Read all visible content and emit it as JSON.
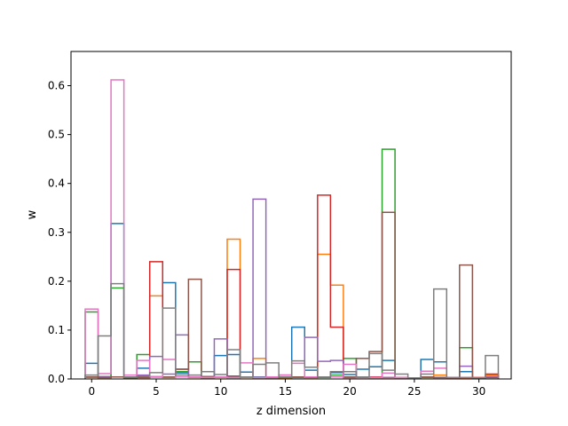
{
  "chart_data": {
    "type": "step-histogram",
    "title": "",
    "xlabel": "z dimension",
    "ylabel": "w",
    "xlim": [
      -1.6,
      32.5
    ],
    "ylim": [
      0,
      0.67
    ],
    "xticks": [
      0,
      5,
      10,
      15,
      20,
      25,
      30
    ],
    "yticks": [
      0.0,
      0.1,
      0.2,
      0.3,
      0.4,
      0.5,
      0.6
    ],
    "x": [
      0,
      1,
      2,
      3,
      4,
      5,
      6,
      7,
      8,
      9,
      10,
      11,
      12,
      13,
      14,
      15,
      16,
      17,
      18,
      19,
      20,
      21,
      22,
      23,
      24,
      25,
      26,
      27,
      28,
      29,
      30,
      31
    ],
    "series": [
      {
        "color": "#1f77b4",
        "values": [
          0.032,
          0.005,
          0.318,
          0.004,
          0.022,
          0.004,
          0.197,
          0.012,
          0.004,
          0.003,
          0.048,
          0.05,
          0.014,
          0.004,
          0.003,
          0.004,
          0.106,
          0.018,
          0.004,
          0.013,
          0.009,
          0.02,
          0.025,
          0.038,
          0.003,
          0.002,
          0.04,
          0.035,
          0.002,
          0.015,
          0.002,
          0.004
        ]
      },
      {
        "color": "#ff7f0e",
        "values": [
          0.003,
          0.003,
          0.004,
          0.003,
          0.003,
          0.17,
          0.003,
          0.004,
          0.003,
          0.003,
          0.003,
          0.286,
          0.003,
          0.042,
          0.003,
          0.002,
          0.004,
          0.003,
          0.255,
          0.192,
          0.003,
          0.003,
          0.003,
          0.003,
          0.003,
          0.002,
          0.003,
          0.008,
          0.002,
          0.002,
          0.002,
          0.008
        ]
      },
      {
        "color": "#2ca02c",
        "values": [
          0.137,
          0.003,
          0.186,
          0.002,
          0.05,
          0.005,
          0.004,
          0.015,
          0.035,
          0.003,
          0.004,
          0.003,
          0.004,
          0.003,
          0.003,
          0.003,
          0.003,
          0.003,
          0.003,
          0.008,
          0.042,
          0.004,
          0.003,
          0.47,
          0.003,
          0.002,
          0.003,
          0.003,
          0.003,
          0.064,
          0.002,
          0.003
        ]
      },
      {
        "color": "#d62728",
        "values": [
          0.004,
          0.003,
          0.004,
          0.003,
          0.003,
          0.24,
          0.004,
          0.02,
          0.004,
          0.003,
          0.004,
          0.224,
          0.004,
          0.003,
          0.003,
          0.008,
          0.004,
          0.003,
          0.376,
          0.106,
          0.003,
          0.004,
          0.004,
          0.003,
          0.003,
          0.002,
          0.004,
          0.003,
          0.003,
          0.003,
          0.003,
          0.01
        ]
      },
      {
        "color": "#9467bd",
        "values": [
          0.004,
          0.005,
          0.004,
          0.003,
          0.008,
          0.046,
          0.01,
          0.09,
          0.004,
          0.003,
          0.082,
          0.003,
          0.004,
          0.368,
          0.003,
          0.004,
          0.003,
          0.085,
          0.036,
          0.038,
          0.003,
          0.003,
          0.003,
          0.003,
          0.003,
          0.002,
          0.004,
          0.003,
          0.003,
          0.026,
          0.002,
          0.003
        ]
      },
      {
        "color": "#8c564b",
        "values": [
          0.004,
          0.003,
          0.004,
          0.003,
          0.003,
          0.004,
          0.004,
          0.02,
          0.204,
          0.005,
          0.004,
          0.006,
          0.004,
          0.003,
          0.004,
          0.003,
          0.004,
          0.004,
          0.004,
          0.004,
          0.004,
          0.042,
          0.056,
          0.341,
          0.003,
          0.002,
          0.004,
          0.003,
          0.003,
          0.233,
          0.002,
          0.003
        ]
      },
      {
        "color": "#e377c2",
        "values": [
          0.143,
          0.011,
          0.612,
          0.008,
          0.038,
          0.005,
          0.04,
          0.004,
          0.004,
          0.003,
          0.004,
          0.003,
          0.033,
          0.003,
          0.004,
          0.008,
          0.032,
          0.004,
          0.004,
          0.004,
          0.03,
          0.004,
          0.003,
          0.012,
          0.003,
          0.002,
          0.016,
          0.022,
          0.003,
          0.003,
          0.002,
          0.006
        ]
      },
      {
        "color": "#7f7f7f",
        "values": [
          0.008,
          0.088,
          0.195,
          0.004,
          0.006,
          0.013,
          0.145,
          0.008,
          0.008,
          0.015,
          0.009,
          0.06,
          0.004,
          0.03,
          0.033,
          0.004,
          0.037,
          0.024,
          0.004,
          0.015,
          0.015,
          0.004,
          0.052,
          0.018,
          0.01,
          0.002,
          0.01,
          0.184,
          0.003,
          0.003,
          0.002,
          0.048
        ]
      }
    ]
  }
}
